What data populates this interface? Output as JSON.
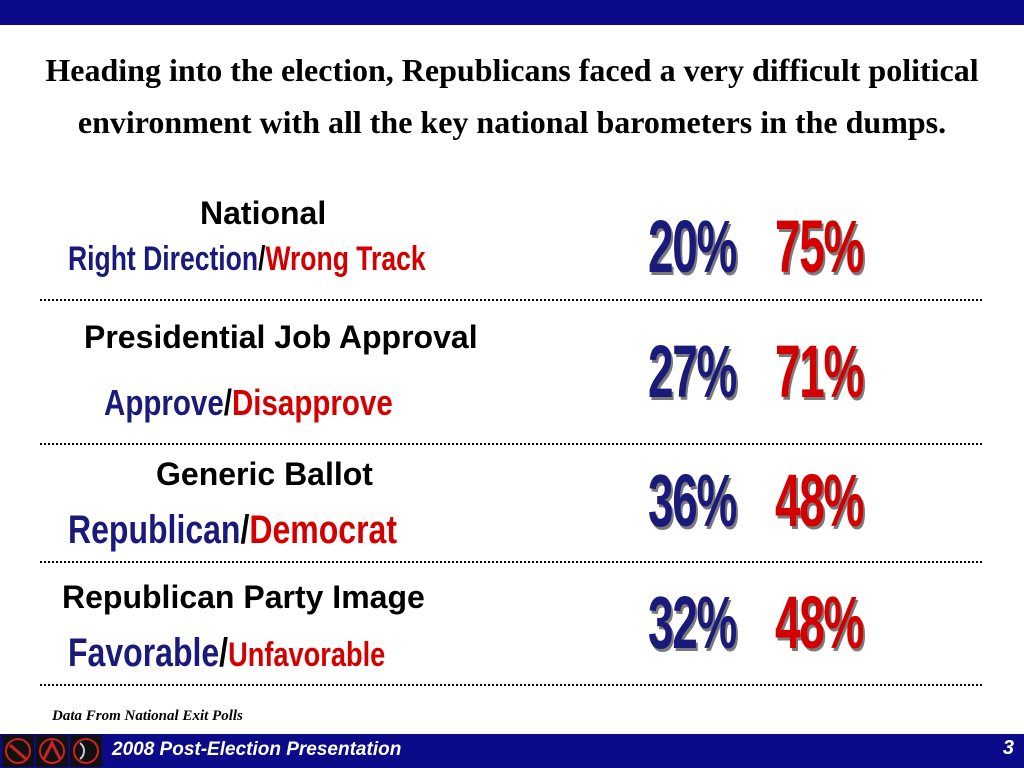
{
  "headline": "Heading into the election, Republicans faced a very difficult political environment with all the key national barometers in the dumps.",
  "colors": {
    "navy": "#1a1a7a",
    "red": "#d40000",
    "bar": "#0b0b8a"
  },
  "sections": [
    {
      "title": "National",
      "left_label": "Right Direction",
      "right_label": "Wrong Track",
      "left_value": "20%",
      "right_value": "75%"
    },
    {
      "title": "Presidential Job Approval",
      "left_label": "Approve",
      "right_label": "Disapprove",
      "left_value": "27%",
      "right_value": "71%"
    },
    {
      "title": "Generic Ballot",
      "left_label": "Republican",
      "right_label": "Democrat",
      "left_value": "36%",
      "right_value": "48%"
    },
    {
      "title": "Republican Party Image",
      "left_label": "Favorable",
      "right_label": "Unfavorable",
      "left_value": "32%",
      "right_value": "48%"
    }
  ],
  "separator": "/",
  "source_note": "Data From National Exit Polls",
  "footer": {
    "title": "2008 Post-Election Presentation",
    "page_number": "3",
    "icons": [
      "logo-icon-1",
      "logo-icon-2",
      "logo-icon-3"
    ]
  }
}
